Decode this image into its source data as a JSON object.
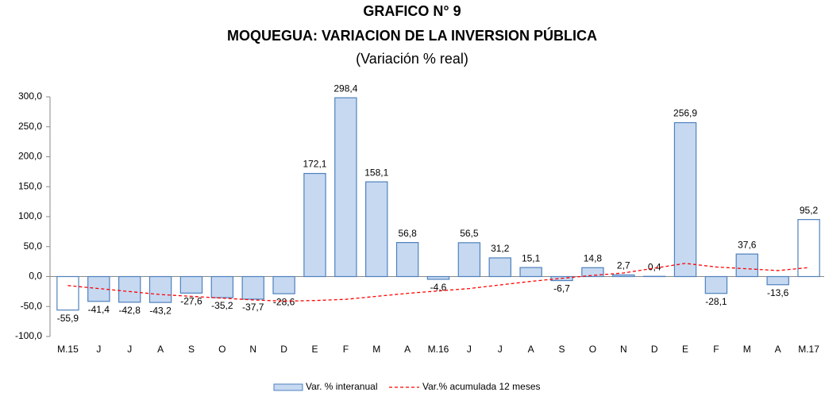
{
  "chart_data": {
    "type": "bar",
    "title": "GRAFICO N° 9",
    "subtitle": "MOQUEGUA: VARIACION DE LA INVERSION PÚBLICA",
    "note": "(Variación % real)",
    "categories": [
      "M.15",
      "J",
      "J",
      "A",
      "S",
      "O",
      "N",
      "D",
      "E",
      "F",
      "M",
      "A",
      "M.16",
      "J",
      "J",
      "A",
      "S",
      "O",
      "N",
      "D",
      "E",
      "F",
      "M",
      "A",
      "M.17"
    ],
    "series": [
      {
        "name": "Var. % interanual",
        "type": "bar",
        "color": "#c6d9f1",
        "edge_color": "#4f81bd",
        "colors": [
          "#ffffff",
          "#c6d9f1",
          "#c6d9f1",
          "#c6d9f1",
          "#c6d9f1",
          "#c6d9f1",
          "#c6d9f1",
          "#c6d9f1",
          "#c6d9f1",
          "#c6d9f1",
          "#c6d9f1",
          "#c6d9f1",
          "#c6d9f1",
          "#c6d9f1",
          "#c6d9f1",
          "#c6d9f1",
          "#c6d9f1",
          "#c6d9f1",
          "#c6d9f1",
          "#c6d9f1",
          "#c6d9f1",
          "#c6d9f1",
          "#c6d9f1",
          "#c6d9f1",
          "#ffffff"
        ],
        "values": [
          -55.9,
          -41.4,
          -42.8,
          -43.2,
          -27.6,
          -35.2,
          -37.7,
          -28.6,
          172.1,
          298.4,
          158.1,
          56.8,
          -4.6,
          56.5,
          31.2,
          15.1,
          -6.7,
          14.8,
          2.7,
          0.4,
          256.9,
          -28.1,
          37.6,
          -13.6,
          95.2
        ],
        "value_labels": [
          "-55,9",
          "-41,4",
          "-42,8",
          "-43,2",
          "-27,6",
          "-35,2",
          "-37,7",
          "-28,6",
          "172,1",
          "298,4",
          "158,1",
          "56,8",
          "-4,6",
          "56,5",
          "31,2",
          "15,1",
          "-6,7",
          "14,8",
          "2,7",
          "0,4",
          "256,9",
          "-28,1",
          "37,6",
          "-13,6",
          "95,2"
        ]
      },
      {
        "name": "Var.% acumulada 12 meses",
        "type": "line",
        "color": "#ff0000",
        "dashed": true,
        "values": [
          -15,
          -20,
          -25,
          -30,
          -33,
          -36,
          -39,
          -41,
          -40,
          -38,
          -33,
          -28,
          -24,
          -20,
          -14,
          -8,
          -3,
          2,
          6,
          14,
          22,
          16,
          13,
          10,
          15
        ]
      }
    ],
    "ylim": [
      -100,
      300
    ],
    "yticks": [
      {
        "value": -100,
        "label": "-100,0"
      },
      {
        "value": -50,
        "label": "-50,0"
      },
      {
        "value": 0,
        "label": "0,0"
      },
      {
        "value": 50,
        "label": "50,0"
      },
      {
        "value": 100,
        "label": "100,0"
      },
      {
        "value": 150,
        "label": "150,0"
      },
      {
        "value": 200,
        "label": "200,0"
      },
      {
        "value": 250,
        "label": "250,0"
      },
      {
        "value": 300,
        "label": "300,0"
      }
    ],
    "grid": false
  }
}
